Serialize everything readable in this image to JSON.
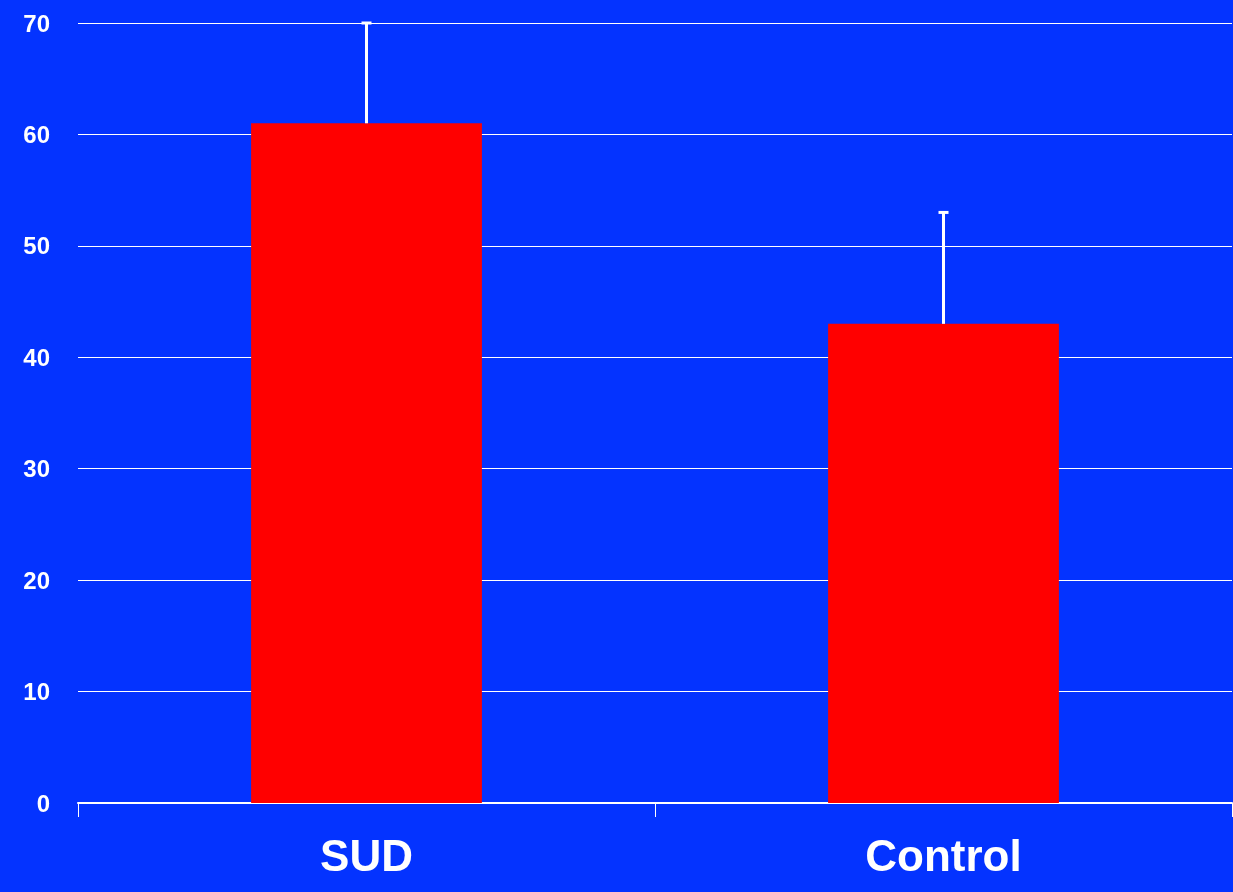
{
  "chart_data": {
    "type": "bar",
    "categories": [
      "SUD",
      "Control"
    ],
    "values": [
      61,
      43
    ],
    "color": "#ff0000",
    "errors": [
      [
        61,
        70
      ],
      [
        43,
        53
      ]
    ],
    "ylim": [
      0,
      70
    ],
    "yticks": [
      0,
      10,
      20,
      30,
      40,
      50,
      60,
      70
    ],
    "grid": "y"
  }
}
